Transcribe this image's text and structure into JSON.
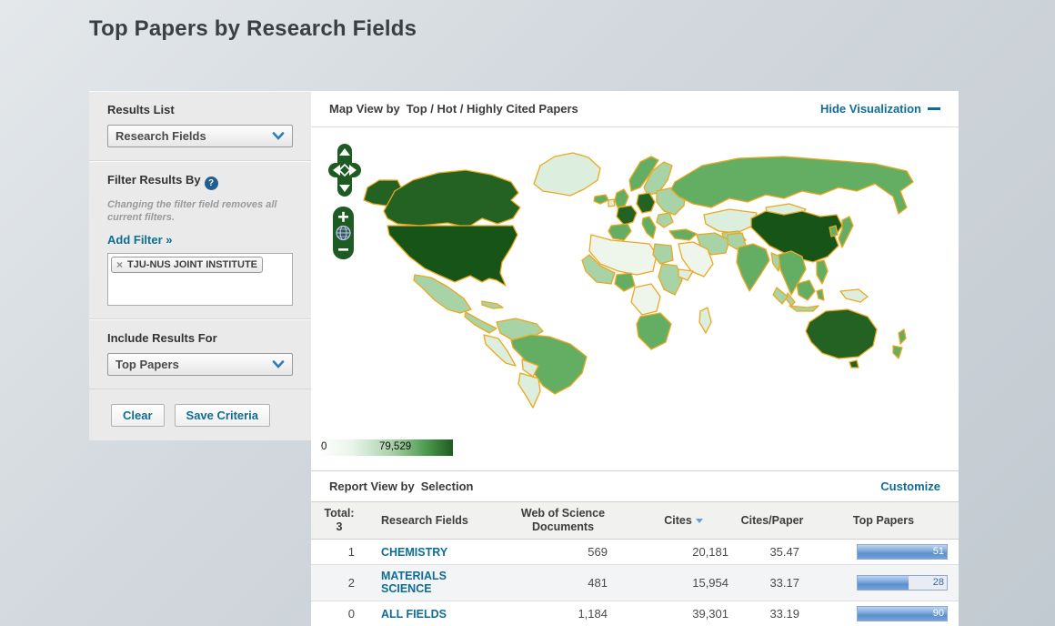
{
  "page": {
    "title": "Top Papers by Research Fields"
  },
  "sidebar": {
    "results_list": {
      "label": "Results List",
      "value": "Research Fields"
    },
    "filter": {
      "label": "Filter Results By",
      "help_glyph": "?",
      "note": "Changing the filter field removes all current filters.",
      "add_filter_label": "Add Filter »",
      "tag": {
        "remove_glyph": "×",
        "label": "TJU-NUS JOINT INSTITUTE"
      }
    },
    "include_results": {
      "label": "Include Results For",
      "value": "Top Papers"
    },
    "buttons": {
      "clear": "Clear",
      "save": "Save Criteria"
    }
  },
  "map": {
    "title_prefix": "Map View by",
    "title_value": "Top / Hot / Highly Cited Papers",
    "hide_label": "Hide Visualization",
    "legend": {
      "min": "0",
      "max": "79,529"
    }
  },
  "report": {
    "title_prefix": "Report View by",
    "title_value": "Selection",
    "customize_label": "Customize",
    "table": {
      "total_label": "Total:",
      "total_count": "3",
      "headers": {
        "fields": "Research Fields",
        "documents": "Web of Science Documents",
        "cites": "Cites",
        "cites_per_paper": "Cites/Paper",
        "top_papers": "Top Papers"
      },
      "sort": {
        "column": "Cites",
        "direction": "desc"
      },
      "rows": [
        {
          "rank": "1",
          "field": "CHEMISTRY",
          "documents": "569",
          "cites": "20,181",
          "cites_per_paper": "35.47",
          "top_papers": "51",
          "bar_fill_pct": 100
        },
        {
          "rank": "2",
          "field": "MATERIALS SCIENCE",
          "documents": "481",
          "cites": "15,954",
          "cites_per_paper": "33.17",
          "top_papers": "28",
          "bar_fill_pct": 57
        },
        {
          "rank": "0",
          "field": "ALL FIELDS",
          "documents": "1,184",
          "cites": "39,301",
          "cites_per_paper": "33.19",
          "top_papers": "90",
          "bar_fill_pct": 100
        }
      ]
    }
  },
  "colors": {
    "link": "#0f6d94",
    "sort_active": "#6f9ccc",
    "bar_fill": "#5b90cf",
    "map_border": "#eba81e",
    "map_max_fill": "#175418",
    "control_green": "#1e5b23"
  }
}
